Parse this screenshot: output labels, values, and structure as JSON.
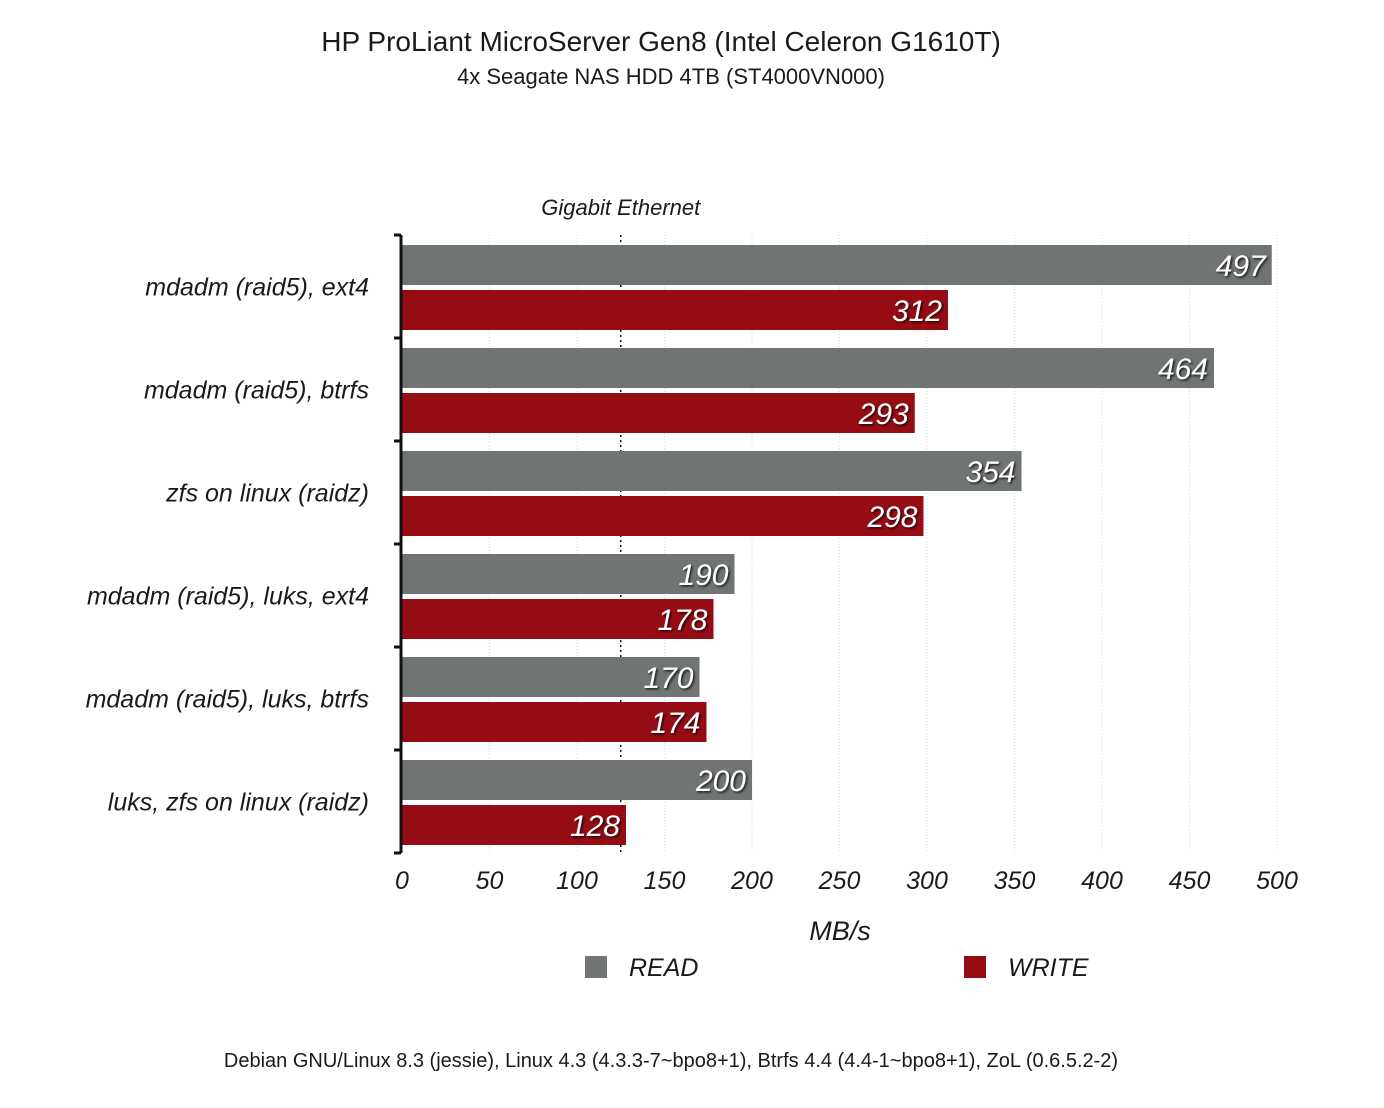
{
  "title": "HP ProLiant MicroServer Gen8 (Intel Celeron G1610T)",
  "subtitle": "4x Seagate NAS HDD 4TB (ST4000VN000)",
  "footer": "Debian GNU/Linux 8.3 (jessie), Linux 4.3 (4.3.3-7~bpo8+1), Btrfs 4.4 (4.4-1~bpo8+1), ZoL (0.6.5.2-2)",
  "chart_data": {
    "type": "bar",
    "orientation": "horizontal",
    "categories": [
      "mdadm (raid5), ext4",
      "mdadm (raid5), btrfs",
      "zfs on linux (raidz)",
      "mdadm (raid5), luks, ext4",
      "mdadm (raid5), luks, btrfs",
      "luks, zfs on linux (raidz)"
    ],
    "series": [
      {
        "name": "READ",
        "color": "#707472",
        "values": [
          497,
          464,
          354,
          190,
          170,
          200
        ]
      },
      {
        "name": "WRITE",
        "color": "#960c14",
        "values": [
          312,
          293,
          298,
          178,
          174,
          128
        ]
      }
    ],
    "xlabel": "MB/s",
    "ylabel": "",
    "xlim": [
      0,
      500
    ],
    "xticks": [
      0,
      50,
      100,
      150,
      200,
      250,
      300,
      350,
      400,
      450,
      500
    ],
    "grid": "vertical dotted",
    "legend_position": "bottom",
    "reference_line": {
      "label": "Gigabit Ethernet",
      "value": 125,
      "style": "dotted"
    }
  }
}
